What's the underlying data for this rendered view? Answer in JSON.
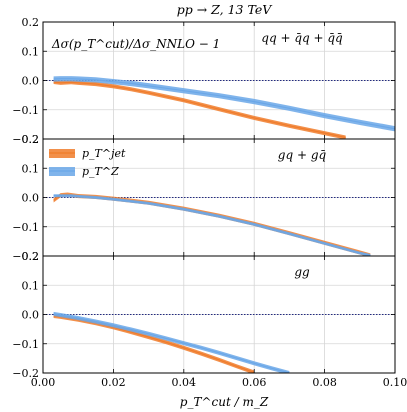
{
  "chart_data": {
    "type": "line",
    "title": "pp → Z, 13 TeV",
    "xlabel": "p_T^cut / m_Z",
    "xlim": [
      0.0,
      0.1
    ],
    "ylim": [
      -0.2,
      0.2
    ],
    "x_ticks": [
      "0.00",
      "0.02",
      "0.04",
      "0.06",
      "0.08",
      "0.10"
    ],
    "y_ticks": [
      "0.2",
      "0.1",
      "0.0",
      "−0.1",
      "−0.2"
    ],
    "grid": true,
    "annotation": "Δσ(p_T^cut)/Δσ_NNLO − 1",
    "legend": {
      "placement": "top-left of middle panel",
      "entries": [
        {
          "name": "p_T^jet",
          "color": "#f07c2b"
        },
        {
          "name": "p_T^Z",
          "color": "#6aa7e8"
        }
      ]
    },
    "panels": [
      {
        "channel": "qq + q̄q + q̄q̄",
        "series": [
          {
            "name": "p_T^jet",
            "color": "#f07c2b",
            "band": 0.007,
            "points": [
              [
                0.003,
                -0.005
              ],
              [
                0.005,
                -0.008
              ],
              [
                0.008,
                -0.006
              ],
              [
                0.01,
                -0.008
              ],
              [
                0.015,
                -0.012
              ],
              [
                0.02,
                -0.02
              ],
              [
                0.025,
                -0.03
              ],
              [
                0.03,
                -0.042
              ],
              [
                0.04,
                -0.068
              ],
              [
                0.05,
                -0.098
              ],
              [
                0.06,
                -0.128
              ],
              [
                0.07,
                -0.155
              ],
              [
                0.08,
                -0.18
              ],
              [
                0.086,
                -0.195
              ]
            ]
          },
          {
            "name": "p_T^Z",
            "color": "#6aa7e8",
            "band": 0.009,
            "points": [
              [
                0.003,
                0.005
              ],
              [
                0.005,
                0.006
              ],
              [
                0.008,
                0.006
              ],
              [
                0.01,
                0.005
              ],
              [
                0.015,
                0.002
              ],
              [
                0.02,
                -0.004
              ],
              [
                0.025,
                -0.01
              ],
              [
                0.03,
                -0.018
              ],
              [
                0.04,
                -0.035
              ],
              [
                0.05,
                -0.052
              ],
              [
                0.06,
                -0.072
              ],
              [
                0.07,
                -0.095
              ],
              [
                0.08,
                -0.12
              ],
              [
                0.09,
                -0.143
              ],
              [
                0.1,
                -0.165
              ]
            ]
          }
        ]
      },
      {
        "channel": "gq + gq̄",
        "series": [
          {
            "name": "p_T^jet",
            "color": "#f07c2b",
            "band": 0.007,
            "points": [
              [
                0.003,
                -0.01
              ],
              [
                0.005,
                0.008
              ],
              [
                0.007,
                0.01
              ],
              [
                0.01,
                0.005
              ],
              [
                0.015,
                0.002
              ],
              [
                0.02,
                -0.004
              ],
              [
                0.03,
                -0.018
              ],
              [
                0.04,
                -0.038
              ],
              [
                0.05,
                -0.062
              ],
              [
                0.06,
                -0.09
              ],
              [
                0.07,
                -0.122
              ],
              [
                0.08,
                -0.155
              ],
              [
                0.09,
                -0.188
              ],
              [
                0.093,
                -0.198
              ]
            ]
          },
          {
            "name": "p_T^Z",
            "color": "#6aa7e8",
            "band": 0.005,
            "points": [
              [
                0.003,
                0.006
              ],
              [
                0.005,
                0.006
              ],
              [
                0.008,
                0.006
              ],
              [
                0.01,
                0.004
              ],
              [
                0.015,
                0.0
              ],
              [
                0.02,
                -0.006
              ],
              [
                0.03,
                -0.02
              ],
              [
                0.04,
                -0.04
              ],
              [
                0.05,
                -0.064
              ],
              [
                0.06,
                -0.092
              ],
              [
                0.07,
                -0.124
              ],
              [
                0.08,
                -0.157
              ],
              [
                0.09,
                -0.19
              ],
              [
                0.093,
                -0.198
              ]
            ]
          }
        ]
      },
      {
        "channel": "gg",
        "series": [
          {
            "name": "p_T^jet",
            "color": "#f07c2b",
            "band": 0.007,
            "points": [
              [
                0.003,
                -0.005
              ],
              [
                0.005,
                -0.008
              ],
              [
                0.01,
                -0.018
              ],
              [
                0.015,
                -0.03
              ],
              [
                0.02,
                -0.044
              ],
              [
                0.025,
                -0.06
              ],
              [
                0.03,
                -0.077
              ],
              [
                0.035,
                -0.095
              ],
              [
                0.04,
                -0.114
              ],
              [
                0.045,
                -0.134
              ],
              [
                0.05,
                -0.155
              ],
              [
                0.055,
                -0.177
              ],
              [
                0.06,
                -0.198
              ]
            ]
          },
          {
            "name": "p_T^Z",
            "color": "#6aa7e8",
            "band": 0.007,
            "points": [
              [
                0.003,
                0.002
              ],
              [
                0.005,
                -0.002
              ],
              [
                0.01,
                -0.012
              ],
              [
                0.015,
                -0.024
              ],
              [
                0.02,
                -0.037
              ],
              [
                0.025,
                -0.051
              ],
              [
                0.03,
                -0.066
              ],
              [
                0.035,
                -0.082
              ],
              [
                0.04,
                -0.098
              ],
              [
                0.045,
                -0.114
              ],
              [
                0.05,
                -0.131
              ],
              [
                0.055,
                -0.149
              ],
              [
                0.06,
                -0.167
              ],
              [
                0.065,
                -0.184
              ],
              [
                0.07,
                -0.2
              ]
            ]
          }
        ]
      }
    ]
  }
}
